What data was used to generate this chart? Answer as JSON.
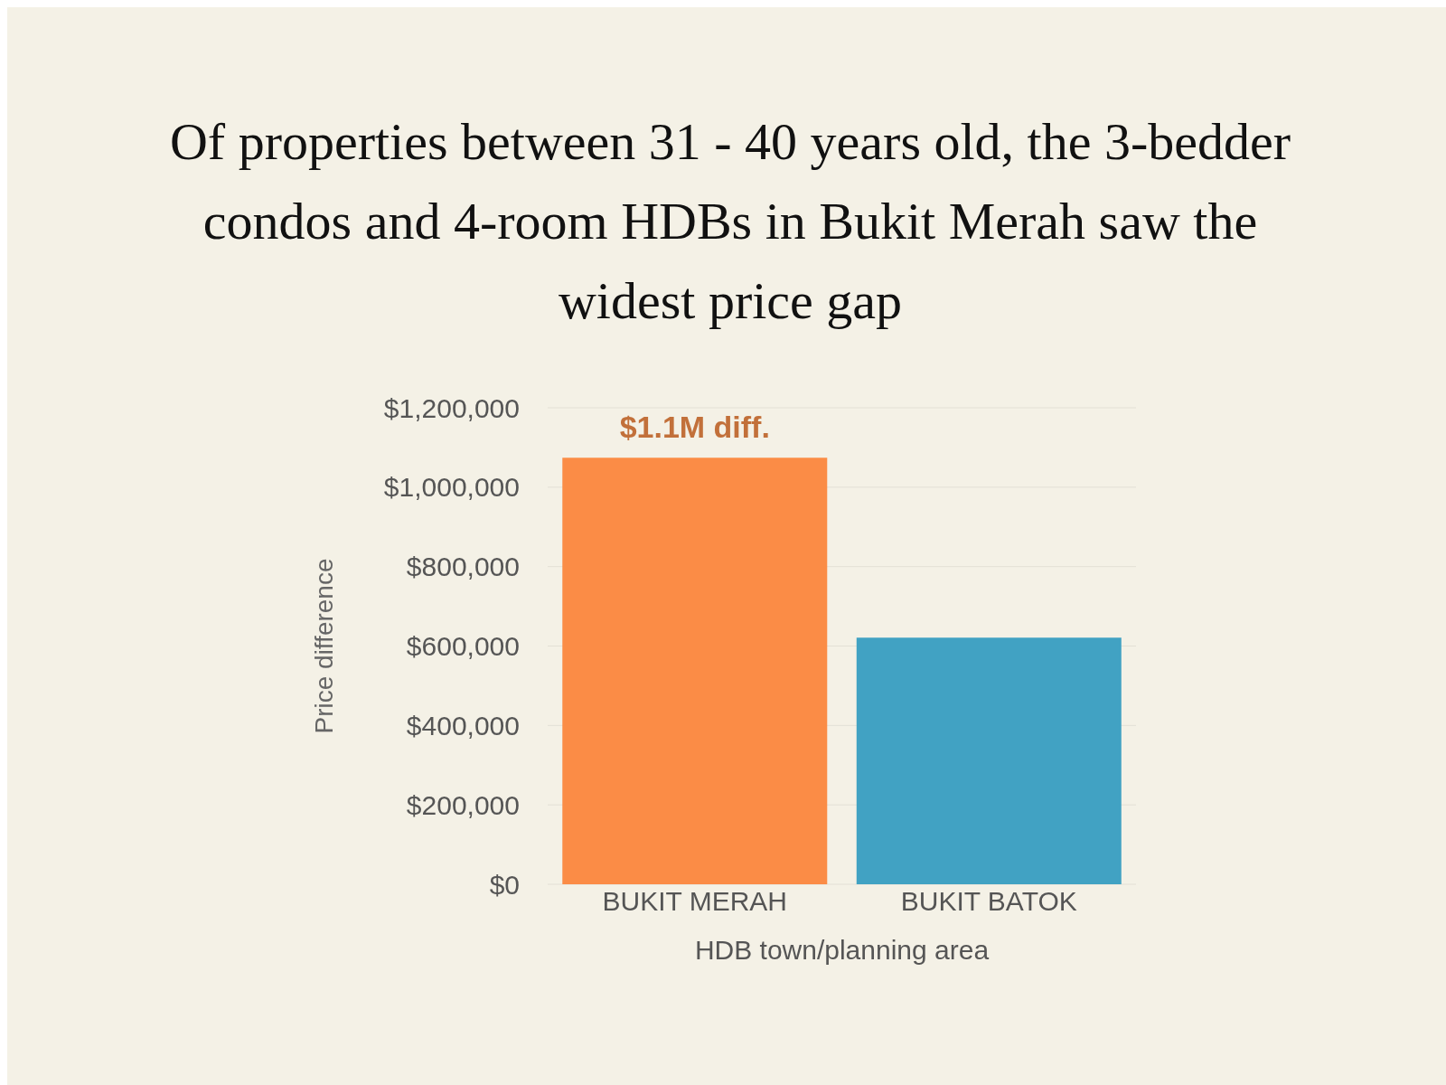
{
  "chart_data": {
    "type": "bar",
    "title": "Of properties between 31 - 40 years old, the 3-bedder condos and 4-room HDBs in Bukit Merah saw the widest price gap",
    "categories": [
      "BUKIT MERAH",
      "BUKIT BATOK"
    ],
    "values": [
      1074000,
      621000
    ],
    "colors": [
      "#fb8c46",
      "#41a2c3"
    ],
    "xlabel": "HDB town/planning area",
    "ylabel": "Price difference",
    "ylim": [
      0,
      1200000
    ],
    "yticks": [
      {
        "value": 0,
        "label": "$0"
      },
      {
        "value": 200000,
        "label": "$200,000"
      },
      {
        "value": 400000,
        "label": "$400,000"
      },
      {
        "value": 600000,
        "label": "$600,000"
      },
      {
        "value": 800000,
        "label": "$800,000"
      },
      {
        "value": 1000000,
        "label": "$1,000,000"
      },
      {
        "value": 1200000,
        "label": "$1,200,000"
      }
    ],
    "grid": "y",
    "annotations": [
      {
        "text": "$1.1M diff.",
        "x": "BUKIT MERAH",
        "y": 1074000
      }
    ]
  }
}
